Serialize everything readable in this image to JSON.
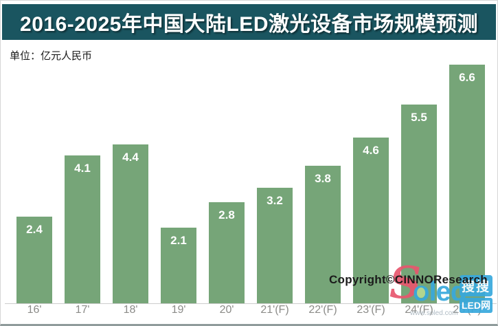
{
  "header": {
    "title": "2016-2025年中国大陆LED激光设备市场规模预测"
  },
  "chart_data": {
    "type": "bar",
    "title": "2016-2025年中国大陆LED激光设备市场规模预测",
    "unit_label": "单位：亿元人民币",
    "categories": [
      "16'",
      "17'",
      "18'",
      "19'",
      "20'",
      "21'(F)",
      "22'(F)",
      "23'(F)",
      "24'(F)",
      "25'(F)"
    ],
    "values": [
      2.4,
      4.1,
      4.4,
      2.1,
      2.8,
      3.2,
      3.8,
      4.6,
      5.5,
      6.6
    ],
    "ylim": [
      0,
      6.6
    ],
    "grid": false,
    "legend": false,
    "bar_color": "#76a578",
    "value_label_color": "#ffffff",
    "tick_label_color": "#8b8b88"
  },
  "footer": {
    "copyright": "Copyright©CINNOResearch"
  },
  "watermark": {
    "s": "S",
    "o": "o",
    "led": "led",
    "badge_top": "搜搜",
    "badge_bottom": "LED网",
    "url": "www.soled.com"
  },
  "colors": {
    "title_bar_bg": "#1a5560",
    "title_text": "#ffffff",
    "bar": "#76a578",
    "axis_line": "#cccccc",
    "watermark_blue": "#38a9dd",
    "watermark_pink": "#e8566e",
    "watermark_bulb_green": "#b8da90"
  }
}
